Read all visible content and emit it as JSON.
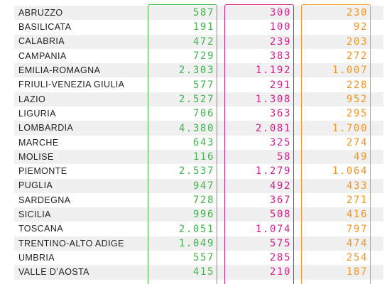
{
  "colors": {
    "total": "#3fb54a",
    "male": "#d6208e",
    "female": "#f7941d",
    "band": "#f0f0f0"
  },
  "rows": [
    {
      "region": "ABRUZZO",
      "total": "587",
      "m": "300",
      "f": "230"
    },
    {
      "region": "BASILICATA",
      "total": "191",
      "m": "100",
      "f": "92"
    },
    {
      "region": "CALABRIA",
      "total": "472",
      "m": "239",
      "f": "203"
    },
    {
      "region": "CAMPANIA",
      "total": "729",
      "m": "383",
      "f": "272"
    },
    {
      "region": "EMILIA-ROMAGNA",
      "total": "2.303",
      "m": "1.192",
      "f": "1.007"
    },
    {
      "region": "FRIULI-VENEZIA GIULIA",
      "total": "577",
      "m": "291",
      "f": "228"
    },
    {
      "region": "LAZIO",
      "total": "2.527",
      "m": "1.308",
      "f": "952"
    },
    {
      "region": "LIGURIA",
      "total": "706",
      "m": "363",
      "f": "295"
    },
    {
      "region": "LOMBARDIA",
      "total": "4.380",
      "m": "2.081",
      "f": "1.700"
    },
    {
      "region": "MARCHE",
      "total": "643",
      "m": "325",
      "f": "274"
    },
    {
      "region": "MOLISE",
      "total": "116",
      "m": "58",
      "f": "49"
    },
    {
      "region": "PIEMONTE",
      "total": "2.537",
      "m": "1.279",
      "f": "1.064"
    },
    {
      "region": "PUGLIA",
      "total": "947",
      "m": "492",
      "f": "433"
    },
    {
      "region": "SARDEGNA",
      "total": "728",
      "m": "367",
      "f": "271"
    },
    {
      "region": "SICILIA",
      "total": "996",
      "m": "508",
      "f": "416"
    },
    {
      "region": "TOSCANA",
      "total": "2.051",
      "m": "1.074",
      "f": "797"
    },
    {
      "region": "TRENTINO-ALTO ADIGE",
      "total": "1.049",
      "m": "575",
      "f": "474"
    },
    {
      "region": "UMBRIA",
      "total": "557",
      "m": "285",
      "f": "254"
    },
    {
      "region": "VALLE D’AOSTA",
      "total": "415",
      "m": "210",
      "f": "187"
    }
  ]
}
